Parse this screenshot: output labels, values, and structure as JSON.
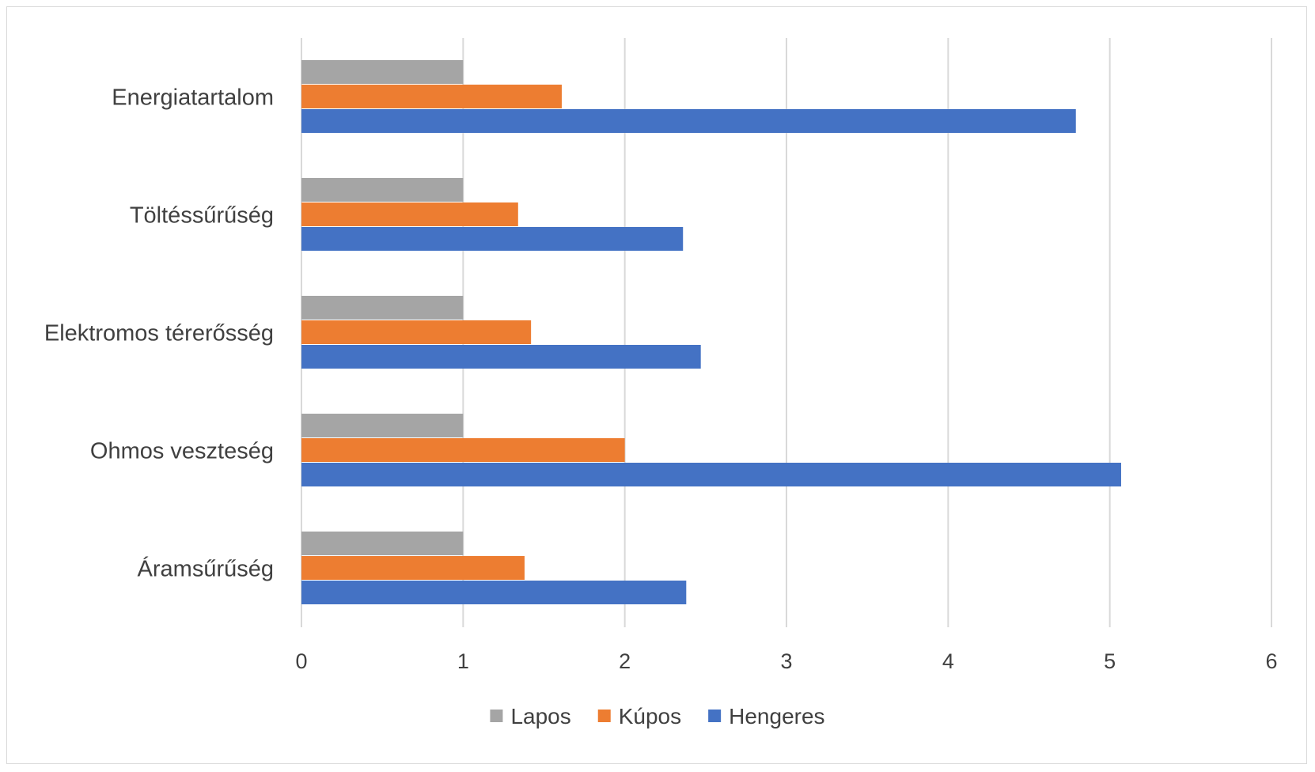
{
  "chart_data": {
    "type": "bar",
    "orientation": "horizontal",
    "categories": [
      "Energiatartalom",
      "Töltéssűrűség",
      "Elektromos térerősség",
      "Ohmos veszteség",
      "Áramsűrűség"
    ],
    "series": [
      {
        "name": "Lapos",
        "color": "#a5a5a5",
        "values": [
          1,
          1,
          1,
          1,
          1
        ]
      },
      {
        "name": "Kúpos",
        "color": "#ed7d31",
        "values": [
          1.61,
          1.34,
          1.42,
          2.0,
          1.38
        ]
      },
      {
        "name": "Hengeres",
        "color": "#4472c4",
        "values": [
          4.79,
          2.36,
          2.47,
          5.07,
          2.38
        ]
      }
    ],
    "xlim": [
      0,
      6
    ],
    "xticks": [
      0,
      1,
      2,
      3,
      4,
      5,
      6
    ],
    "grid": true,
    "legend": "bottom"
  }
}
